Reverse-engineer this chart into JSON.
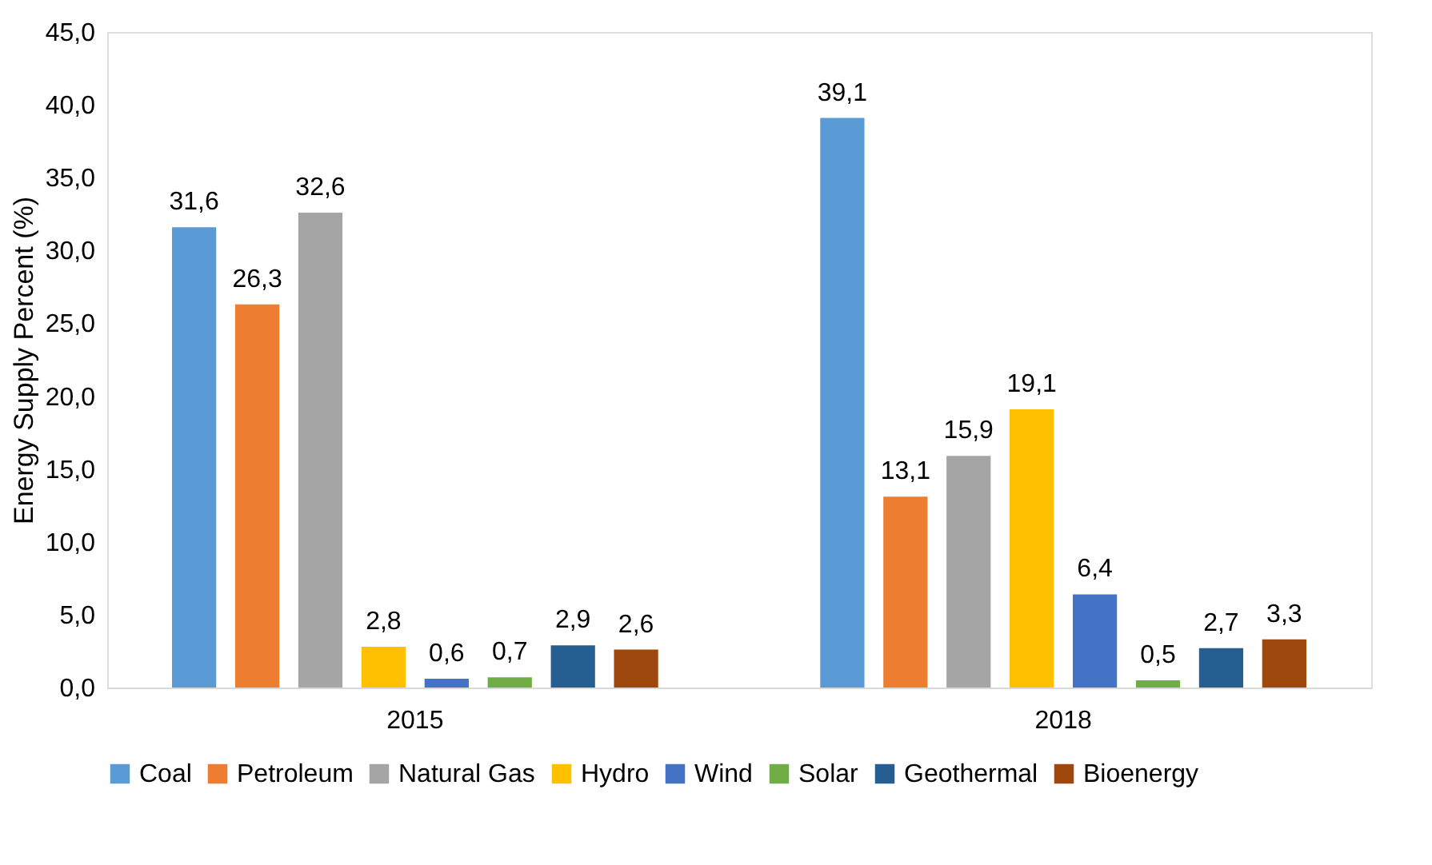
{
  "chart_data": {
    "type": "bar",
    "ylabel": "Energy Supply Percent (%)",
    "categories": [
      "2015",
      "2018"
    ],
    "series": [
      {
        "name": "Coal",
        "color": "#5b9bd5",
        "values": [
          31.6,
          39.1
        ],
        "value_labels": [
          "31,6",
          "39,1"
        ]
      },
      {
        "name": "Petroleum",
        "color": "#ed7d31",
        "values": [
          26.3,
          13.1
        ],
        "value_labels": [
          "26,3",
          "13,1"
        ]
      },
      {
        "name": "Natural Gas",
        "color": "#a5a5a5",
        "values": [
          32.6,
          15.9
        ],
        "value_labels": [
          "32,6",
          "15,9"
        ]
      },
      {
        "name": "Hydro",
        "color": "#ffc000",
        "values": [
          2.8,
          19.1
        ],
        "value_labels": [
          "2,8",
          "19,1"
        ]
      },
      {
        "name": "Wind",
        "color": "#4472c4",
        "values": [
          0.6,
          6.4
        ],
        "value_labels": [
          "0,6",
          "6,4"
        ]
      },
      {
        "name": "Solar",
        "color": "#70ad47",
        "values": [
          0.7,
          0.5
        ],
        "value_labels": [
          "0,7",
          "0,5"
        ]
      },
      {
        "name": "Geothermal",
        "color": "#255e91",
        "values": [
          2.9,
          2.7
        ],
        "value_labels": [
          "2,9",
          "2,7"
        ]
      },
      {
        "name": "Bioenergy",
        "color": "#9e480e",
        "values": [
          2.6,
          3.3
        ],
        "value_labels": [
          "2,6",
          "3,3"
        ]
      }
    ],
    "ylim": [
      0,
      45
    ],
    "yticks": [
      {
        "value": 0,
        "label": "0,0"
      },
      {
        "value": 5,
        "label": "5,0"
      },
      {
        "value": 10,
        "label": "10,0"
      },
      {
        "value": 15,
        "label": "15,0"
      },
      {
        "value": 20,
        "label": "20,0"
      },
      {
        "value": 25,
        "label": "25,0"
      },
      {
        "value": 30,
        "label": "30,0"
      },
      {
        "value": 35,
        "label": "35,0"
      },
      {
        "value": 40,
        "label": "40,0"
      },
      {
        "value": 45,
        "label": "45,0"
      }
    ],
    "grid": false,
    "legend": "bottom"
  }
}
